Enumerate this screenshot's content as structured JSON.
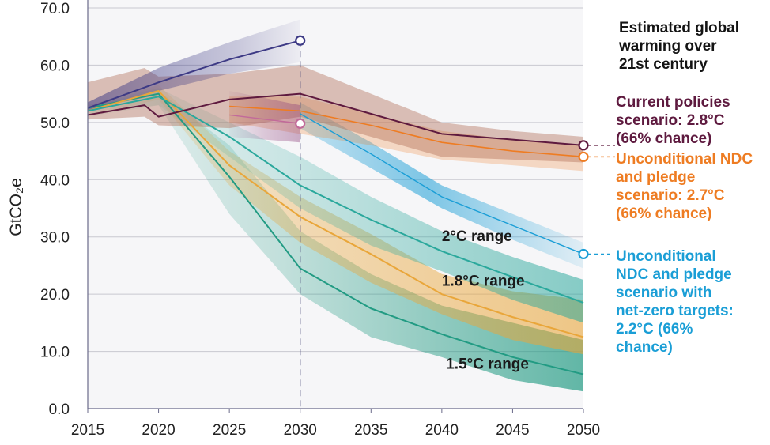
{
  "chart_data": {
    "type": "line",
    "ylabel": "GtCO₂e",
    "xlabel": "",
    "ylim": [
      0,
      70
    ],
    "xlim": [
      2015,
      2050
    ],
    "x_ticks": [
      2015,
      2020,
      2025,
      2030,
      2035,
      2040,
      2045,
      2050
    ],
    "y_ticks": [
      "0.0",
      "10.0",
      "20.0",
      "30.0",
      "40.0",
      "50.0",
      "60.0",
      "70.0"
    ],
    "legend_title": "Estimated global warming over 21st century",
    "colors": {
      "current_policies": "#5e1a3f",
      "ndc": "#ee7c22",
      "net_zero": "#1a9ed6",
      "range_2c": "#2aa89c",
      "range_18c": "#e9a63a",
      "range_15c": "#229b83",
      "historical": "#3d3a85",
      "band_history_top": "#3d3a85",
      "band_brown": "#b06a50"
    },
    "annotations": {
      "range_2c": "2°C range",
      "range_18c": "1.8°C range",
      "range_15c": "1.5°C range"
    },
    "series": [
      {
        "key": "historic_projection",
        "values": [
          [
            2015,
            52.5
          ],
          [
            2020,
            57
          ],
          [
            2025,
            61
          ],
          [
            2030,
            64.3
          ]
        ],
        "band": [
          [
            2015,
            53.5,
            52
          ],
          [
            2020,
            59.5,
            55.5
          ],
          [
            2025,
            64,
            58.5
          ],
          [
            2030,
            68,
            60.5
          ]
        ],
        "end_marker": true
      },
      {
        "key": "pink_short",
        "values": [
          [
            2025,
            51.3
          ],
          [
            2030,
            49.8
          ]
        ],
        "band": [
          [
            2025,
            55.5,
            47.5
          ],
          [
            2030,
            53,
            46.5
          ]
        ],
        "end_marker": true
      },
      {
        "key": "current_policies",
        "label": "Current policies scenario: 2.8°C (66% chance)",
        "values": [
          [
            2015,
            51.3
          ],
          [
            2019,
            53
          ],
          [
            2020,
            51
          ],
          [
            2025,
            54
          ],
          [
            2030,
            55
          ],
          [
            2035,
            51.5
          ],
          [
            2040,
            48
          ],
          [
            2045,
            47
          ],
          [
            2050,
            46
          ]
        ],
        "band": [
          [
            2015,
            57,
            50.5
          ],
          [
            2019,
            59.5,
            51
          ],
          [
            2020,
            58,
            49.5
          ],
          [
            2025,
            58.5,
            49
          ],
          [
            2030,
            60,
            51
          ],
          [
            2035,
            55,
            47.5
          ],
          [
            2040,
            50,
            44
          ],
          [
            2045,
            48.5,
            43.5
          ],
          [
            2050,
            47.5,
            43
          ]
        ],
        "end_marker": true
      },
      {
        "key": "ndc",
        "label": "Unconditional NDC and pledge scenario: 2.7°C (66% chance)",
        "values": [
          [
            2025,
            52.8
          ],
          [
            2030,
            52
          ],
          [
            2035,
            49.5
          ],
          [
            2040,
            46.5
          ],
          [
            2045,
            45
          ],
          [
            2050,
            44
          ]
        ],
        "band": [
          [
            2025,
            54.5,
            50
          ],
          [
            2030,
            54.5,
            48
          ],
          [
            2035,
            51.5,
            46
          ],
          [
            2040,
            48.5,
            43.5
          ],
          [
            2045,
            47,
            42.5
          ],
          [
            2050,
            46,
            41.5
          ]
        ],
        "end_marker": true
      },
      {
        "key": "net_zero",
        "label": "Unconditional NDC and pledge scenario with net-zero targets: 2.2°C (66% chance)",
        "values": [
          [
            2030,
            51.5
          ],
          [
            2035,
            44.5
          ],
          [
            2040,
            37
          ],
          [
            2045,
            32
          ],
          [
            2050,
            27
          ]
        ],
        "band": [
          [
            2030,
            53.5,
            49
          ],
          [
            2035,
            46.5,
            42
          ],
          [
            2040,
            39,
            35
          ],
          [
            2045,
            34,
            29.5
          ],
          [
            2050,
            29,
            24.5
          ]
        ],
        "end_marker": true
      },
      {
        "key": "range_2c",
        "values": [
          [
            2015,
            52
          ],
          [
            2020,
            54.5
          ],
          [
            2025,
            47.5
          ],
          [
            2030,
            39
          ],
          [
            2035,
            33
          ],
          [
            2040,
            27.5
          ],
          [
            2045,
            23
          ],
          [
            2050,
            18.5
          ]
        ],
        "band": [
          [
            2015,
            53,
            51
          ],
          [
            2020,
            56,
            53
          ],
          [
            2025,
            50,
            44
          ],
          [
            2030,
            44,
            35
          ],
          [
            2035,
            37,
            28.5
          ],
          [
            2040,
            31,
            24
          ],
          [
            2045,
            26.5,
            19
          ],
          [
            2050,
            22.5,
            15
          ]
        ]
      },
      {
        "key": "range_18c",
        "values": [
          [
            2015,
            52
          ],
          [
            2020,
            55.5
          ],
          [
            2025,
            42.5
          ],
          [
            2030,
            33.5
          ],
          [
            2035,
            27
          ],
          [
            2040,
            20
          ],
          [
            2045,
            16
          ],
          [
            2050,
            12.5
          ]
        ],
        "band": [
          [
            2015,
            53,
            51
          ],
          [
            2020,
            56.5,
            54
          ],
          [
            2025,
            45,
            39
          ],
          [
            2030,
            37,
            29
          ],
          [
            2035,
            30.5,
            22
          ],
          [
            2040,
            23.5,
            16.5
          ],
          [
            2045,
            20.5,
            12
          ],
          [
            2050,
            19,
            9.5
          ]
        ]
      },
      {
        "key": "range_15c",
        "values": [
          [
            2015,
            52.5
          ],
          [
            2020,
            55
          ],
          [
            2025,
            40.5
          ],
          [
            2030,
            24.5
          ],
          [
            2035,
            17.5
          ],
          [
            2040,
            13
          ],
          [
            2045,
            9
          ],
          [
            2050,
            6
          ]
        ],
        "band": [
          [
            2015,
            53,
            51.5
          ],
          [
            2020,
            55.5,
            53
          ],
          [
            2025,
            46,
            34
          ],
          [
            2030,
            31,
            20
          ],
          [
            2035,
            23.5,
            12.5
          ],
          [
            2040,
            18,
            9
          ],
          [
            2045,
            15,
            5
          ],
          [
            2050,
            12,
            3
          ]
        ]
      }
    ]
  },
  "legend": {
    "title": "Estimated global\nwarming over\n21st century",
    "current_policies": "Current policies\nscenario: 2.8°C\n(66% chance)",
    "ndc": "Unconditional NDC\nand pledge\nscenario: 2.7°C\n(66% chance)",
    "net_zero": "Unconditional\nNDC and pledge\nscenario with\nnet-zero targets:\n2.2°C (66%\nchance)"
  }
}
